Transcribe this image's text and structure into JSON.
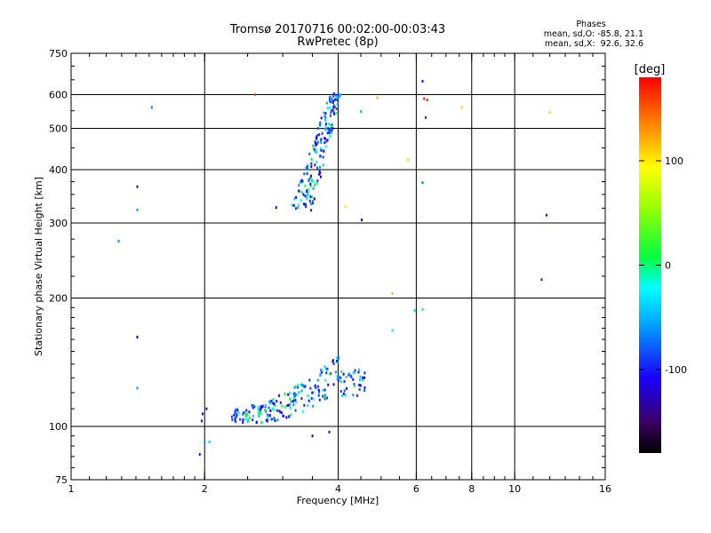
{
  "header": {
    "title_line1": "Tromsø 20170716 00:02:00-00:03:43",
    "title_line2": "RwPretec (8p)"
  },
  "phase_stats": {
    "heading": "Phases",
    "line_o": "mean, sd,O: -85.8, 21.1",
    "line_x": "mean, sd,X:  92.6, 32.6"
  },
  "colorbar": {
    "label": "[deg]",
    "ticks": [
      {
        "value": 100,
        "label": "100"
      },
      {
        "value": 0,
        "label": "0"
      },
      {
        "value": -100,
        "label": "-100"
      }
    ],
    "range": [
      -180,
      180
    ]
  },
  "chart_data": {
    "type": "scatter",
    "xlabel": "Frequency [MHz]",
    "ylabel": "Stationary phase Virtual Height [km]",
    "xscale": "log",
    "yscale": "log",
    "xlim": [
      1,
      16
    ],
    "ylim": [
      75,
      750
    ],
    "x_ticks": [
      1,
      2,
      4,
      6,
      8,
      10,
      16
    ],
    "y_ticks": [
      75,
      100,
      200,
      300,
      400,
      500,
      600,
      750
    ],
    "grid": true,
    "color_variable": "phase [deg]",
    "points_scattered": [
      {
        "x": 1.41,
        "y": 365,
        "phase": -140
      },
      {
        "x": 1.41,
        "y": 322,
        "phase": -60
      },
      {
        "x": 1.52,
        "y": 560,
        "phase": -70
      },
      {
        "x": 1.28,
        "y": 272,
        "phase": -60
      },
      {
        "x": 1.41,
        "y": 162,
        "phase": -140
      },
      {
        "x": 1.41,
        "y": 123,
        "phase": -60
      },
      {
        "x": 2.6,
        "y": 600,
        "phase": 150
      },
      {
        "x": 2.9,
        "y": 326,
        "phase": -120
      },
      {
        "x": 3.5,
        "y": 95,
        "phase": -140
      },
      {
        "x": 3.82,
        "y": 97,
        "phase": -120
      },
      {
        "x": 4.15,
        "y": 328,
        "phase": 100
      },
      {
        "x": 4.5,
        "y": 548,
        "phase": -40
      },
      {
        "x": 4.52,
        "y": 305,
        "phase": -110
      },
      {
        "x": 4.9,
        "y": 590,
        "phase": 120
      },
      {
        "x": 5.3,
        "y": 205,
        "phase": 120
      },
      {
        "x": 5.3,
        "y": 168,
        "phase": -30
      },
      {
        "x": 5.75,
        "y": 422,
        "phase": 110
      },
      {
        "x": 5.95,
        "y": 187,
        "phase": -40
      },
      {
        "x": 6.2,
        "y": 188,
        "phase": 10
      },
      {
        "x": 6.2,
        "y": 373,
        "phase": -70
      },
      {
        "x": 6.2,
        "y": 645,
        "phase": -120
      },
      {
        "x": 6.25,
        "y": 587,
        "phase": 170
      },
      {
        "x": 6.35,
        "y": 583,
        "phase": 170
      },
      {
        "x": 6.3,
        "y": 530,
        "phase": -90
      },
      {
        "x": 7.6,
        "y": 560,
        "phase": 110
      },
      {
        "x": 11.5,
        "y": 221,
        "phase": -100
      },
      {
        "x": 11.8,
        "y": 313,
        "phase": -100
      },
      {
        "x": 12.0,
        "y": 545,
        "phase": 110
      },
      {
        "x": 1.98,
        "y": 107,
        "phase": -120
      },
      {
        "x": 1.97,
        "y": 103,
        "phase": -100
      },
      {
        "x": 1.95,
        "y": 86,
        "phase": -100
      },
      {
        "x": 2.0,
        "y": 92,
        "phase": -60
      },
      {
        "x": 2.05,
        "y": 92,
        "phase": -40
      },
      {
        "x": 2.02,
        "y": 110,
        "phase": -130
      }
    ],
    "clusters": [
      {
        "name": "",
        "x_range": [
          2.3,
          4.6
        ],
        "y_start": 104,
        "y_end": 150,
        "count": 230,
        "phase_mean": -100
      },
      {
        "name": "",
        "x_range": [
          3.2,
          4.05
        ],
        "y_start": 320,
        "y_end": 610,
        "count": 180,
        "phase_mean": -100
      }
    ]
  }
}
